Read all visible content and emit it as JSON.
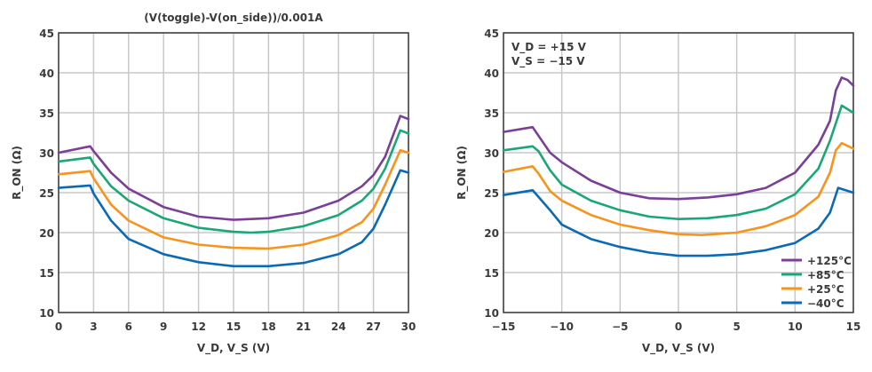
{
  "chart_data": [
    {
      "type": "line",
      "title": "(V(toggle)-V(on_side))/0.001A",
      "xlabel": "V_D, V_S (V)",
      "ylabel": "R_ON (Ω)",
      "xlim": [
        0,
        30
      ],
      "ylim": [
        10,
        45
      ],
      "xticks": [
        0,
        3,
        6,
        9,
        12,
        15,
        18,
        21,
        24,
        27,
        30
      ],
      "yticks": [
        10,
        15,
        20,
        25,
        30,
        35,
        40,
        45
      ],
      "grid": true,
      "series": [
        {
          "color": "#7b3f98",
          "x": [
            0,
            2.7,
            3,
            4.5,
            6,
            9,
            12,
            15,
            18,
            21,
            24,
            26,
            27,
            28,
            29.3,
            30
          ],
          "y": [
            30,
            30.8,
            30.2,
            27.5,
            25.5,
            23.2,
            22,
            21.6,
            21.8,
            22.5,
            24,
            25.8,
            27.2,
            29.5,
            34.6,
            34.2
          ]
        },
        {
          "color": "#1aa775",
          "x": [
            0,
            2.7,
            3,
            4.5,
            6,
            9,
            12,
            15,
            16.5,
            18,
            21,
            24,
            26,
            27,
            28,
            29.3,
            30
          ],
          "y": [
            28.9,
            29.4,
            28.6,
            25.8,
            24,
            21.8,
            20.6,
            20.1,
            20,
            20.1,
            20.8,
            22.2,
            24,
            25.5,
            28,
            32.8,
            32.4
          ]
        },
        {
          "color": "#f7941d",
          "x": [
            0,
            2.7,
            3,
            4.5,
            6,
            9,
            12,
            15,
            18,
            21,
            24,
            26,
            27,
            28,
            29.3,
            30
          ],
          "y": [
            27.3,
            27.7,
            26.8,
            23.5,
            21.5,
            19.4,
            18.5,
            18.1,
            18,
            18.5,
            19.7,
            21.3,
            23,
            26,
            30.3,
            30
          ]
        },
        {
          "color": "#0a6ab6",
          "x": [
            0,
            2.7,
            3,
            4.5,
            6,
            9,
            12,
            15,
            18,
            21,
            24,
            26,
            27,
            28,
            29.3,
            30
          ],
          "y": [
            25.6,
            25.9,
            24.9,
            21.5,
            19.2,
            17.3,
            16.3,
            15.8,
            15.8,
            16.2,
            17.3,
            18.8,
            20.5,
            23.5,
            27.8,
            27.5
          ]
        }
      ]
    },
    {
      "type": "line",
      "title": "",
      "annotation": [
        "V_D = +15 V",
        "V_S = −15 V"
      ],
      "xlabel": "V_D, V_S (V)",
      "ylabel": "R_ON (Ω)",
      "xlim": [
        -15,
        15
      ],
      "ylim": [
        10,
        45
      ],
      "xticks": [
        -15,
        -10,
        -5,
        0,
        5,
        10,
        15
      ],
      "xtick_labels": [
        "−15",
        "−10",
        "−5",
        "0",
        "5",
        "10",
        "15"
      ],
      "yticks": [
        10,
        15,
        20,
        25,
        30,
        35,
        40,
        45
      ],
      "grid": true,
      "legend": "bottom-right",
      "series": [
        {
          "name": "+125°C",
          "color": "#7b3f98",
          "x": [
            -15,
            -12.5,
            -11,
            -10,
            -7.5,
            -5,
            -2.5,
            0,
            2.5,
            5,
            7.5,
            10,
            12,
            13,
            13.5,
            14,
            14.5,
            15
          ],
          "y": [
            32.6,
            33.2,
            30,
            28.8,
            26.5,
            25,
            24.3,
            24.2,
            24.4,
            24.8,
            25.6,
            27.5,
            31,
            34,
            37.8,
            39.4,
            39.1,
            38.4
          ]
        },
        {
          "name": "+85°C",
          "color": "#1aa775",
          "x": [
            -15,
            -12.5,
            -12,
            -11,
            -10,
            -7.5,
            -5,
            -2.5,
            0,
            2.5,
            5,
            7.5,
            10,
            12,
            13,
            14,
            15
          ],
          "y": [
            30.3,
            30.8,
            30.2,
            27.8,
            26,
            24,
            22.8,
            22,
            21.7,
            21.8,
            22.2,
            23,
            24.8,
            28,
            31.5,
            35.9,
            35
          ]
        },
        {
          "name": "+25°C",
          "color": "#f7941d",
          "x": [
            -15,
            -12.5,
            -12,
            -11,
            -10,
            -7.5,
            -5,
            -2.5,
            0,
            2,
            5,
            7.5,
            10,
            12,
            13,
            13.5,
            14,
            15
          ],
          "y": [
            27.6,
            28.3,
            27.4,
            25.2,
            24,
            22.2,
            21,
            20.3,
            19.8,
            19.7,
            20,
            20.8,
            22.2,
            24.5,
            27.5,
            30.3,
            31.2,
            30.5
          ]
        },
        {
          "name": "−40°C",
          "color": "#0a6ab6",
          "x": [
            -15,
            -12.5,
            -12.2,
            -11,
            -10,
            -7.5,
            -5,
            -2.5,
            0,
            2.5,
            5,
            7.5,
            10,
            12,
            13,
            13.7,
            15
          ],
          "y": [
            24.7,
            25.3,
            24.8,
            22.8,
            21,
            19.2,
            18.2,
            17.5,
            17.1,
            17.1,
            17.3,
            17.8,
            18.7,
            20.5,
            22.5,
            25.6,
            25
          ]
        }
      ]
    }
  ]
}
